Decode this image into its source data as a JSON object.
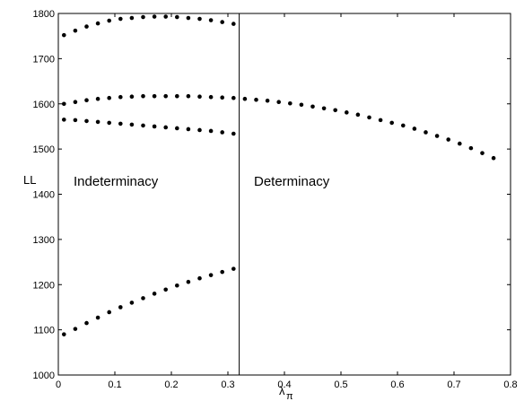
{
  "chart_data": {
    "type": "scatter",
    "xlabel_main": "λ",
    "xlabel_sub": "π",
    "ylabel": "LL",
    "xlim": [
      0,
      0.8
    ],
    "ylim": [
      1000,
      1800
    ],
    "xticks": [
      0,
      0.1,
      0.2,
      0.3,
      0.4,
      0.5,
      0.6,
      0.7,
      0.8
    ],
    "xtick_labels": [
      "0",
      "0.1",
      "0.2",
      "0.3",
      "0.4",
      "0.5",
      "0.6",
      "0.7",
      "0.8"
    ],
    "yticks": [
      1000,
      1100,
      1200,
      1300,
      1400,
      1500,
      1600,
      1700,
      1800
    ],
    "ytick_labels": [
      "1000",
      "1100",
      "1200",
      "1300",
      "1400",
      "1500",
      "1600",
      "1700",
      "1800"
    ],
    "grid": false,
    "divider_x": 0.32,
    "annotations": [
      {
        "text": "Indeterminacy",
        "x": 0.025,
        "y": 1420
      },
      {
        "text": "Determinacy",
        "x": 0.345,
        "y": 1420
      }
    ],
    "series": [
      {
        "x": [
          0.01,
          0.03,
          0.05,
          0.07,
          0.09,
          0.11,
          0.13,
          0.15,
          0.17,
          0.19,
          0.21,
          0.23,
          0.25,
          0.27,
          0.29,
          0.31
        ],
        "values": [
          1752,
          1762,
          1771,
          1778,
          1784,
          1788,
          1790,
          1792,
          1793,
          1793,
          1792,
          1790,
          1788,
          1785,
          1781,
          1777
        ]
      },
      {
        "x": [
          0.01,
          0.03,
          0.05,
          0.07,
          0.09,
          0.11,
          0.13,
          0.15,
          0.17,
          0.19,
          0.21,
          0.23,
          0.25,
          0.27,
          0.29,
          0.31,
          0.33,
          0.35,
          0.37,
          0.39,
          0.41,
          0.43,
          0.45,
          0.47,
          0.49,
          0.51,
          0.53,
          0.55,
          0.57,
          0.59,
          0.61,
          0.63,
          0.65,
          0.67,
          0.69,
          0.71,
          0.73,
          0.75,
          0.77
        ],
        "values": [
          1600,
          1604,
          1608,
          1611,
          1613,
          1615,
          1616,
          1617,
          1617,
          1617,
          1617,
          1617,
          1616,
          1615,
          1614,
          1613,
          1611,
          1609,
          1607,
          1604,
          1601,
          1598,
          1594,
          1590,
          1586,
          1581,
          1576,
          1570,
          1564,
          1558,
          1552,
          1545,
          1537,
          1529,
          1521,
          1512,
          1502,
          1491,
          1480
        ]
      },
      {
        "x": [
          0.01,
          0.03,
          0.05,
          0.07,
          0.09,
          0.11,
          0.13,
          0.15,
          0.17,
          0.19,
          0.21,
          0.23,
          0.25,
          0.27,
          0.29,
          0.31
        ],
        "values": [
          1565,
          1564,
          1562,
          1560,
          1558,
          1556,
          1554,
          1552,
          1550,
          1548,
          1546,
          1544,
          1542,
          1540,
          1537,
          1534
        ]
      },
      {
        "x": [
          0.01,
          0.03,
          0.05,
          0.07,
          0.09,
          0.11,
          0.13,
          0.15,
          0.17,
          0.19,
          0.21,
          0.23,
          0.25,
          0.27,
          0.29,
          0.31
        ],
        "values": [
          1090,
          1102,
          1115,
          1127,
          1139,
          1150,
          1160,
          1170,
          1180,
          1189,
          1198,
          1206,
          1214,
          1221,
          1228,
          1235
        ]
      }
    ]
  }
}
